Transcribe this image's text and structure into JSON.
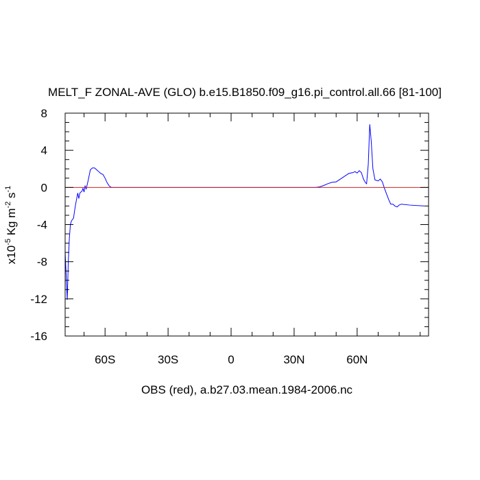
{
  "chart_data": {
    "type": "line",
    "title": "MELT_F ZONAL-AVE (GLO) b.e15.B1850.f09_g16.pi_control.all.66 [81-100]",
    "ylabel": [
      "x10",
      "-5",
      " Kg m",
      "-2",
      " s",
      "-1"
    ],
    "footer": "OBS (red), a.b27.03.mean.1984-2006.nc",
    "xlim": [
      -79,
      94
    ],
    "ylim": [
      -16,
      8
    ],
    "xticks": [
      {
        "value": -60,
        "label": "60S"
      },
      {
        "value": -30,
        "label": "30S"
      },
      0,
      {
        "value": 30,
        "label": "30N"
      },
      {
        "value": 60,
        "label": "60N"
      }
    ],
    "xminorticks": [
      -70,
      -50,
      -40,
      -20,
      -10,
      10,
      20,
      40,
      50,
      70,
      80,
      90
    ],
    "yticks": [
      -16,
      -12,
      -8,
      -4,
      0,
      4,
      8
    ],
    "yminorticks": [
      -15,
      -14,
      -13,
      -11,
      -10,
      -9,
      -7,
      -6,
      -5,
      -3,
      -2,
      -1,
      1,
      2,
      3,
      5,
      6,
      7
    ],
    "series": [
      {
        "color": "#0000ff",
        "x": [
          -79,
          -78,
          -77.5,
          -77,
          -76.5,
          -76,
          -75,
          -74.5,
          -74,
          -73,
          -72.5,
          -72,
          -71,
          -70.5,
          -70,
          -69.5,
          -69,
          -68,
          -67,
          -66,
          -65,
          -64,
          -63,
          -62,
          -61,
          -60,
          -59,
          -58,
          -57,
          -50,
          0,
          40,
          42,
          44,
          46,
          48,
          50,
          52,
          54,
          56,
          58,
          59,
          60,
          61,
          62,
          63,
          64,
          64.5,
          65.3,
          66,
          66.7,
          67.5,
          68.5,
          70,
          71,
          72,
          73,
          74,
          75,
          76,
          77,
          78,
          79,
          80,
          81,
          85,
          92
        ],
        "values": [
          -7,
          -12.1,
          -8,
          -5.5,
          -4,
          -3.6,
          -3.3,
          -2.5,
          -1.8,
          -0.6,
          -1.2,
          -0.6,
          -0.4,
          -0.1,
          -0.5,
          0.2,
          -0.2,
          0.8,
          1.9,
          2.1,
          2.1,
          1.9,
          1.7,
          1.5,
          1.4,
          1.0,
          0.5,
          0.15,
          0,
          0,
          0,
          0,
          0.05,
          0.2,
          0.4,
          0.55,
          0.6,
          0.9,
          1.2,
          1.5,
          1.6,
          1.7,
          1.55,
          1.8,
          1.6,
          0.9,
          0.5,
          0.4,
          2.5,
          6.8,
          5,
          2,
          0.8,
          0.7,
          0.9,
          0.6,
          -0.1,
          -0.7,
          -1.3,
          -1.8,
          -1.8,
          -2.0,
          -2.1,
          -1.9,
          -1.8,
          -1.9,
          -2.0
        ]
      },
      {
        "color": "#cc2222",
        "x": [
          -79,
          94
        ],
        "values": [
          0,
          0
        ]
      }
    ]
  }
}
